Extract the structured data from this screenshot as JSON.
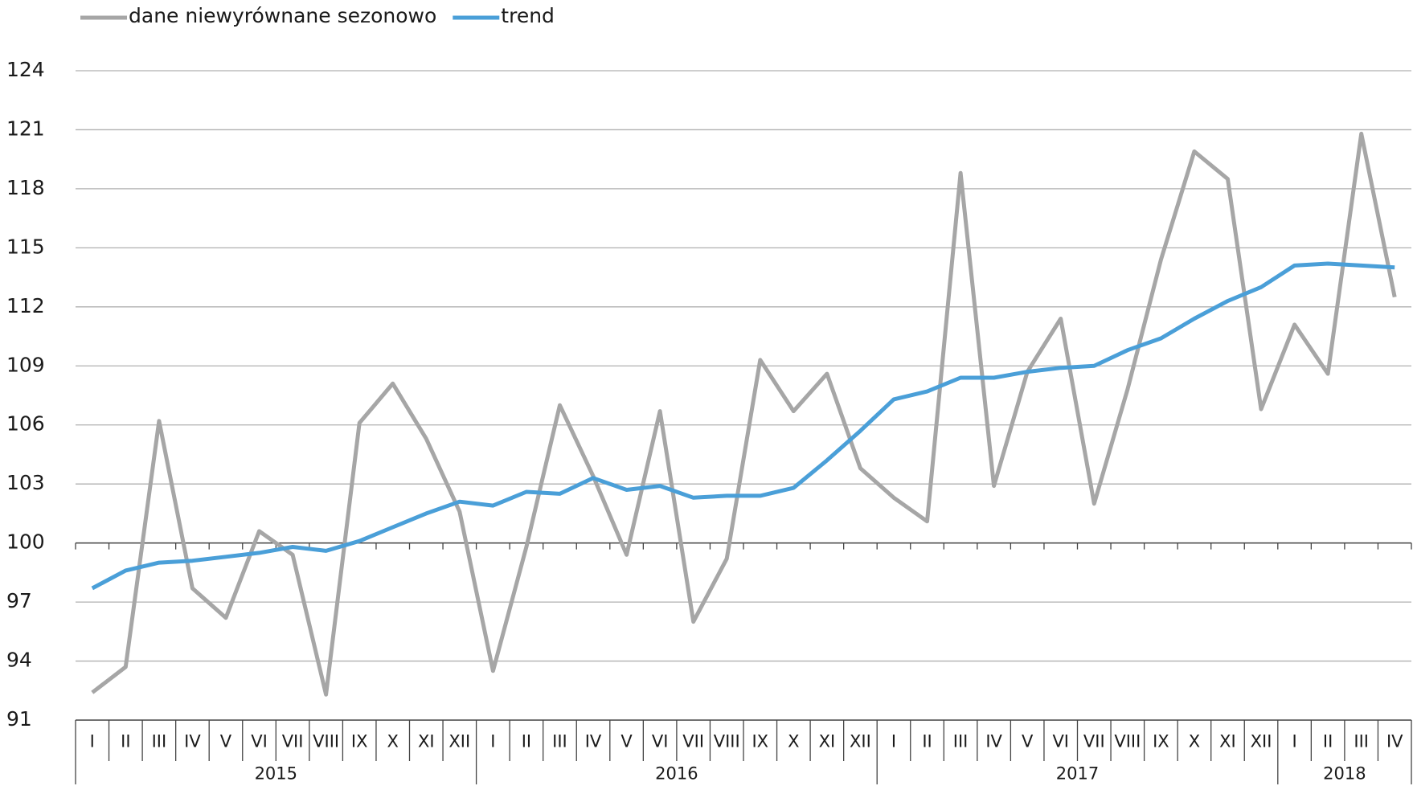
{
  "chart_data": {
    "type": "line",
    "categories": [
      "I",
      "II",
      "III",
      "IV",
      "V",
      "VI",
      "VII",
      "VIII",
      "IX",
      "X",
      "XI",
      "XII",
      "I",
      "II",
      "III",
      "IV",
      "V",
      "VI",
      "VII",
      "VIII",
      "IX",
      "X",
      "XI",
      "XII",
      "I",
      "II",
      "III",
      "IV",
      "V",
      "VI",
      "VII",
      "VIII",
      "IX",
      "X",
      "XI",
      "XII",
      "I",
      "II",
      "III",
      "IV"
    ],
    "category_groups": [
      "2015",
      "2016",
      "2017",
      "2018"
    ],
    "series": [
      {
        "name": "dane niewyrównane sezonowo",
        "color": "#a6a6a6",
        "values": [
          92.4,
          93.7,
          106.2,
          97.7,
          96.2,
          100.6,
          99.4,
          92.3,
          106.1,
          108.1,
          105.3,
          101.6,
          93.5,
          99.8,
          107.0,
          103.4,
          99.4,
          106.7,
          96.0,
          99.2,
          109.3,
          106.7,
          108.6,
          103.8,
          102.3,
          101.1,
          118.8,
          102.9,
          108.7,
          111.4,
          102.0,
          107.8,
          114.4,
          119.9,
          118.5,
          106.8,
          111.1,
          108.6,
          120.8,
          112.5
        ]
      },
      {
        "name": "trend",
        "color": "#4a9fd8",
        "values": [
          97.7,
          98.6,
          99.0,
          99.1,
          99.3,
          99.5,
          99.8,
          99.6,
          100.1,
          100.8,
          101.5,
          102.1,
          101.9,
          102.6,
          102.5,
          103.3,
          102.7,
          102.9,
          102.3,
          102.4,
          102.4,
          102.8,
          104.2,
          105.7,
          107.3,
          107.7,
          108.4,
          108.4,
          108.7,
          108.9,
          109.0,
          109.8,
          110.4,
          111.4,
          112.3,
          113.0,
          114.1,
          114.2,
          114.1,
          114.0
        ]
      }
    ],
    "ylim": [
      91,
      124
    ],
    "yticks": [
      91,
      94,
      97,
      100,
      103,
      106,
      109,
      112,
      115,
      118,
      121,
      124
    ],
    "axis_at": 100,
    "grid": true,
    "legend": "top-left"
  }
}
